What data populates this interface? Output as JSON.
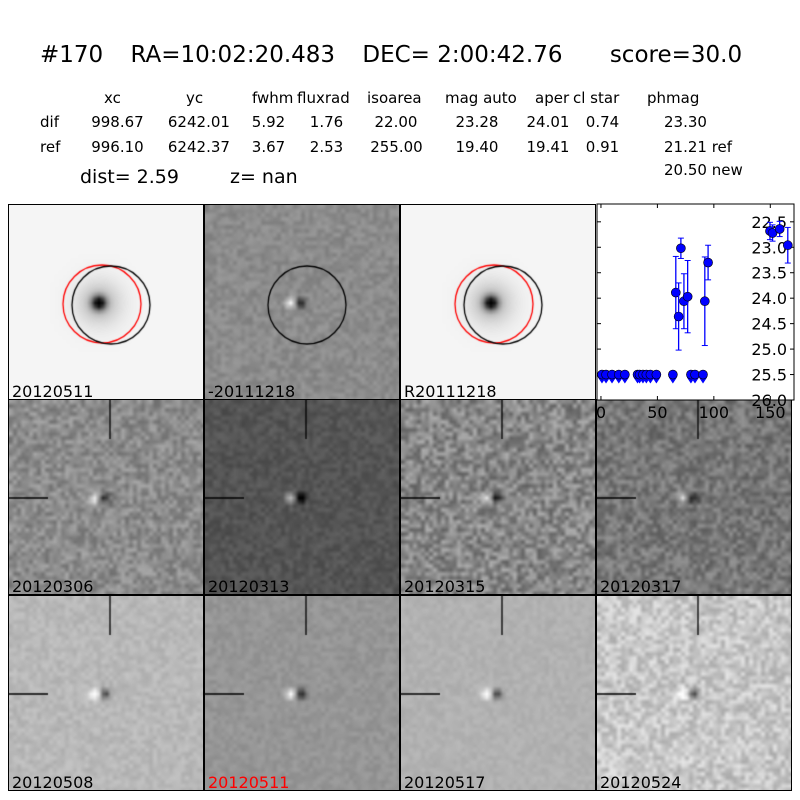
{
  "header": {
    "id": "#170",
    "ra": "RA=10:02:20.483",
    "dec": "DEC= 2:00:42.76",
    "score": "score=30.0"
  },
  "table": {
    "columns": [
      "xc",
      "yc",
      "fwhm",
      "fluxrad",
      "isoarea",
      "mag auto",
      "aper",
      "cl star",
      "phmag"
    ],
    "rows": [
      {
        "label": "dif",
        "values": [
          "998.67",
          "6242.01",
          "5.92",
          "1.76",
          "22.00",
          "23.28",
          "24.01",
          "0.74",
          "23.30"
        ]
      },
      {
        "label": "ref",
        "values": [
          "996.10",
          "6242.37",
          "3.67",
          "2.53",
          "255.00",
          "19.40",
          "19.41",
          "0.91",
          "21.21 ref"
        ]
      }
    ],
    "extra": "20.50 new",
    "dist": "dist=  2.59",
    "z": "z=   nan"
  },
  "panels": [
    {
      "label": "20120511",
      "type": "new",
      "bg": 245
    },
    {
      "label": "-20111218",
      "type": "diff",
      "bg": 140
    },
    {
      "label": "R20111218",
      "type": "ref",
      "bg": 245
    },
    {
      "label": "20120306",
      "bg": 140,
      "noise": 28
    },
    {
      "label": "20120313",
      "bg": 85,
      "noise": 14
    },
    {
      "label": "20120315",
      "bg": 135,
      "noise": 40
    },
    {
      "label": "20120317",
      "bg": 120,
      "noise": 30
    },
    {
      "label": "20120508",
      "bg": 185,
      "noise": 12
    },
    {
      "label": "20120511",
      "bg": 150,
      "noise": 10,
      "color": "#ff0000"
    },
    {
      "label": "20120517",
      "bg": 178,
      "noise": 8
    },
    {
      "label": "20120524",
      "bg": 200,
      "noise": 30
    }
  ],
  "chart_data": {
    "type": "scatter",
    "xlim": [
      -3.5,
      171
    ],
    "ylim": [
      26.0,
      22.15
    ],
    "y_inverted": true,
    "xticks": [
      "0",
      "50",
      "100",
      "150"
    ],
    "yticks": [
      "22.5",
      "23.0",
      "23.5",
      "24.0",
      "24.5",
      "25.0",
      "25.5",
      "26.0"
    ],
    "color": "#0000ff",
    "detections": [
      {
        "x": 66.3,
        "y": 23.89,
        "err": 0.71
      },
      {
        "x": 68.8,
        "y": 24.36,
        "err": 0.66
      },
      {
        "x": 70.8,
        "y": 23.02,
        "err": 0.2
      },
      {
        "x": 73.5,
        "y": 24.06,
        "err": 0.54
      },
      {
        "x": 76.8,
        "y": 23.97,
        "err": 0.71
      },
      {
        "x": 92,
        "y": 24.06,
        "err": 0.87
      },
      {
        "x": 94.9,
        "y": 23.3,
        "err": 0.34
      },
      {
        "x": 149.7,
        "y": 22.68,
        "err": 0.17
      },
      {
        "x": 152,
        "y": 22.72,
        "err": 0.16
      },
      {
        "x": 158.3,
        "y": 22.64,
        "err": 0.15
      },
      {
        "x": 165.5,
        "y": 22.96,
        "err": 0.35
      }
    ],
    "upper_limits": {
      "y": 25.5,
      "x": [
        0.9,
        4.5,
        9.8,
        15.8,
        21.2,
        32.4,
        34.2,
        37.2,
        40.2,
        43.8,
        49.1,
        63.7,
        79.7,
        83.3,
        90.4
      ]
    }
  }
}
